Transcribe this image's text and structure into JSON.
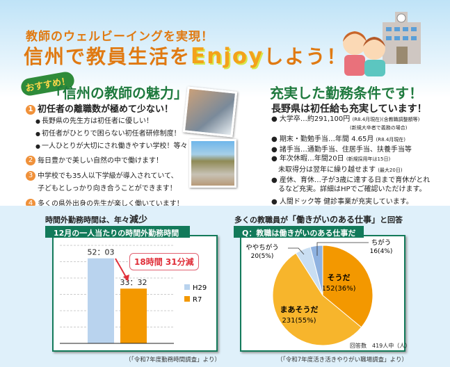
{
  "header": {
    "subtitle": "教師のウェルビーイングを実現！",
    "title_pre": "信州で教員生活を",
    "title_en": "Enjoy",
    "title_post": "しよう！"
  },
  "left": {
    "badge": "おすすめ！",
    "title": "「信州の教師の魅力」",
    "points": [
      {
        "n": "1",
        "text": "初任者の離職数が極めて少ない！",
        "subs": [
          "長野県の先生方は初任者に優しい！",
          "初任者がひとりで困らない初任者研修制度！",
          "一人ひとりが大切にされ働きやすい学校！等々"
        ]
      },
      {
        "n": "2",
        "text": "毎日豊かで美しい自然の中で働けます！"
      },
      {
        "n": "3",
        "text": "中学校でも35人以下学級が導入されていて、",
        "text2": "子どもとしっかり向き合うことができます！"
      },
      {
        "n": "4",
        "text": "多くの県外出身の先生が楽しく働いています！"
      }
    ]
  },
  "right": {
    "title": "充実した勤務条件です！",
    "subtitle": "長野県は初任給も充実しています！",
    "items": [
      {
        "text": "大学卒…約291,100円",
        "note": "(R8.4月現在)(含教職調整額等)",
        "note2": "(新規大卒者で義務の場合)"
      },
      {
        "text": "期末・勤勉手当…年間 4.65月",
        "note": "(R8.4月現在)"
      },
      {
        "text": "諸手当…通勤手当、住居手当、扶養手当等"
      },
      {
        "text": "年次休暇…年間20日",
        "note": "(新規採用年は15日)",
        "line2": "未取得分は翌年に繰り越せます",
        "note2": "(最大20日)"
      },
      {
        "text": "産休、育休…子が3歳に達する日まで育休がとれ",
        "line2": "るなど充実。詳細はHPでご確認いただけます。"
      },
      {
        "text": "人間ドック等 健診事業が充実しています。"
      }
    ]
  },
  "bar_section": {
    "heading": "時間外勤務時間は、年々",
    "heading_em": "減少",
    "label": "12月の一人当たりの時間外勤務時間",
    "callout": "18時間 31分減",
    "source": "（「令和7年度勤務時間調査」より）"
  },
  "pie_section": {
    "heading": "多くの教職員が",
    "heading_em": "「働きがいのある仕事」",
    "heading_post": "と回答",
    "label": "Q：教職は働きがいのある仕事だ",
    "respondents": "回答数　419人中（人）",
    "source": "（「令和7年度活き活きやりがい職場調査」より）"
  },
  "chart_data": [
    {
      "type": "bar",
      "title": "12月の一人当たりの時間外勤務時間",
      "categories": [
        "H29",
        "R7"
      ],
      "values": [
        52.05,
        33.53
      ],
      "data_labels": [
        "52：03",
        "33：32"
      ],
      "colors": [
        "#b9d3ee",
        "#f39800"
      ],
      "ylim": [
        0,
        60
      ],
      "grid": true,
      "legend": "right"
    },
    {
      "type": "pie",
      "title": "Q：教職は働きがいのある仕事だ",
      "slices": [
        {
          "label": "そうだ",
          "count": 152,
          "pct": 36,
          "text": "152(36%)",
          "color": "#f39800"
        },
        {
          "label": "まあそうだ",
          "count": 231,
          "pct": 55,
          "text": "231(55%)",
          "color": "#f7b52c"
        },
        {
          "label": "ややちがう",
          "count": 20,
          "pct": 5,
          "text": "20(5%)",
          "color": "#c9def2"
        },
        {
          "label": "ちがう",
          "count": 16,
          "pct": 4,
          "text": "16(4%)",
          "color": "#8fb2e0"
        }
      ]
    }
  ]
}
